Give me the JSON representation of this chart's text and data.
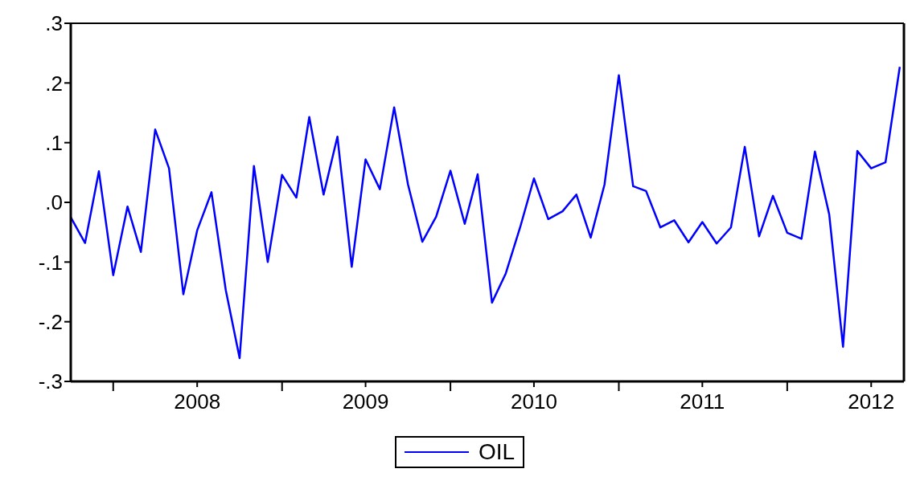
{
  "chart_data": {
    "type": "line",
    "x": [
      "2007-10",
      "2007-11",
      "2007-12",
      "2008-01",
      "2008-02",
      "2008-03",
      "2008-04",
      "2008-05",
      "2008-06",
      "2008-07",
      "2008-08",
      "2008-09",
      "2008-10",
      "2008-11",
      "2008-12",
      "2009-01",
      "2009-02",
      "2009-03",
      "2009-04",
      "2009-05",
      "2009-06",
      "2009-07",
      "2009-08",
      "2009-09",
      "2009-10",
      "2009-11",
      "2009-12",
      "2010-01",
      "2010-02",
      "2010-03",
      "2010-04",
      "2010-05",
      "2010-06",
      "2010-07",
      "2010-08",
      "2010-09",
      "2010-10",
      "2010-11",
      "2010-12",
      "2011-01",
      "2011-02",
      "2011-03",
      "2011-04",
      "2011-05",
      "2011-06",
      "2011-07",
      "2011-08",
      "2011-09",
      "2011-10",
      "2011-11",
      "2011-12",
      "2012-01",
      "2012-02",
      "2012-03",
      "2012-04",
      "2012-05",
      "2012-06",
      "2012-07",
      "2012-08",
      "2012-09"
    ],
    "series": [
      {
        "name": "OIL",
        "color": "#0000ff",
        "values": [
          -0.025,
          -0.068,
          0.052,
          -0.122,
          -0.007,
          -0.083,
          0.122,
          0.057,
          -0.154,
          -0.047,
          0.017,
          -0.147,
          -0.261,
          0.061,
          -0.1,
          0.046,
          0.008,
          0.143,
          0.013,
          0.11,
          -0.108,
          0.072,
          0.022,
          0.159,
          0.03,
          -0.066,
          -0.024,
          0.053,
          -0.036,
          0.047,
          -0.168,
          -0.119,
          -0.042,
          0.04,
          -0.028,
          -0.015,
          0.013,
          -0.059,
          0.03,
          0.213,
          0.027,
          0.019,
          -0.042,
          -0.03,
          -0.067,
          -0.033,
          -0.069,
          -0.042,
          0.093,
          -0.057,
          0.011,
          -0.051,
          -0.061,
          0.085,
          -0.02,
          -0.242,
          0.086,
          0.057,
          0.067,
          0.227
        ]
      }
    ],
    "xlim": [
      "2007-10",
      "2012-09-10"
    ],
    "xticks": [
      {
        "value": "2008-01",
        "label": null
      },
      {
        "value": "2008-07",
        "label": "2008"
      },
      {
        "value": "2009-01",
        "label": null
      },
      {
        "value": "2009-07",
        "label": "2009"
      },
      {
        "value": "2010-01",
        "label": null
      },
      {
        "value": "2010-07",
        "label": "2010"
      },
      {
        "value": "2011-01",
        "label": null
      },
      {
        "value": "2011-07",
        "label": "2011"
      },
      {
        "value": "2012-01",
        "label": null
      },
      {
        "value": "2012-07",
        "label": "2012"
      }
    ],
    "ylim": [
      -0.3,
      0.3
    ],
    "yticks": [
      {
        "value": -0.3,
        "label": "-.3"
      },
      {
        "value": -0.2,
        "label": "-.2"
      },
      {
        "value": -0.1,
        "label": "-.1"
      },
      {
        "value": 0,
        "label": ".0"
      },
      {
        "value": 0.1,
        "label": ".1"
      },
      {
        "value": 0.2,
        "label": ".2"
      },
      {
        "value": 0.3,
        "label": ".3"
      }
    ],
    "grid": false,
    "legend": "bottom",
    "marker": "none",
    "line_style": "solid"
  }
}
